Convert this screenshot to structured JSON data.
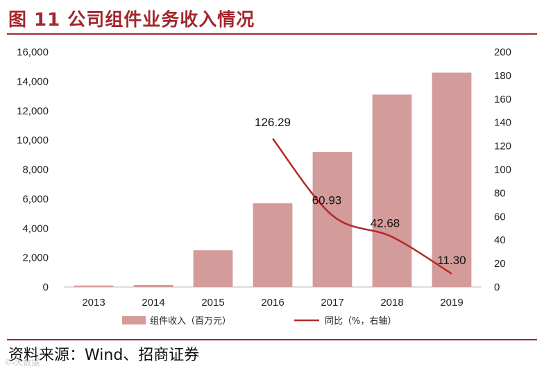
{
  "header": {
    "title": "图 11 公司组件业务收入情况"
  },
  "footer": {
    "source": "资料来源：Wind、招商证券",
    "watermark": "©⬝大数据"
  },
  "colors": {
    "bar": "#d39b99",
    "line": "#b22a2a",
    "accent": "#a3262c"
  },
  "chart_data": {
    "type": "bar+line",
    "title": "",
    "categories": [
      "2013",
      "2014",
      "2015",
      "2016",
      "2017",
      "2018",
      "2019"
    ],
    "series": [
      {
        "name": "组件收入（百万元）",
        "type": "bar",
        "axis": "left",
        "values": [
          100,
          140,
          2500,
          5700,
          9200,
          13100,
          14600
        ]
      },
      {
        "name": "同比（%，右轴）",
        "type": "line",
        "axis": "right",
        "values": [
          null,
          null,
          null,
          126.29,
          60.93,
          42.68,
          11.3
        ],
        "labels": [
          "",
          "",
          "",
          "126.29",
          "60.93",
          "42.68",
          "11.30"
        ]
      }
    ],
    "y_left": {
      "min": 0,
      "max": 16000,
      "ticks": [
        "0",
        "2,000",
        "4,000",
        "6,000",
        "8,000",
        "10,000",
        "12,000",
        "14,000",
        "16,000"
      ]
    },
    "y_right": {
      "min": 0,
      "max": 200,
      "ticks": [
        "0",
        "20",
        "40",
        "60",
        "80",
        "100",
        "120",
        "140",
        "160",
        "180",
        "200"
      ]
    },
    "grid": false,
    "legend_position": "bottom"
  }
}
